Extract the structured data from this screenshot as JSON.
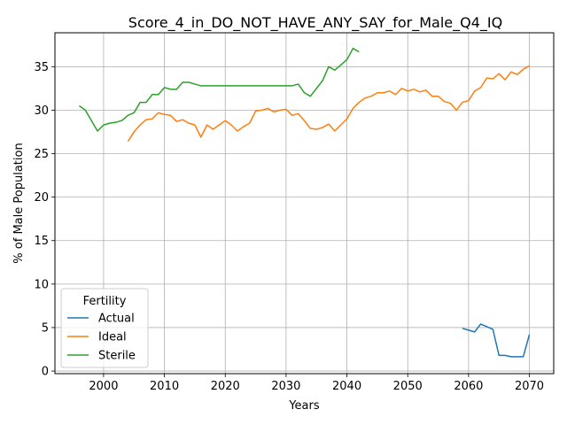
{
  "chart_data": {
    "type": "line",
    "title": "Score_4_in_DO_NOT_HAVE_ANY_SAY_for_Male_Q4_IQ",
    "xlabel": "Years",
    "ylabel": "% of Male Population",
    "xlim": [
      1992,
      2074
    ],
    "ylim": [
      -0.3,
      38.9
    ],
    "xticks": [
      2000,
      2010,
      2020,
      2030,
      2040,
      2050,
      2060,
      2070
    ],
    "yticks": [
      0,
      5,
      10,
      15,
      20,
      25,
      30,
      35
    ],
    "grid": true,
    "legend": {
      "title": "Fertility",
      "placement": "lower-left"
    },
    "series": [
      {
        "name": "Actual",
        "color": "#1f77b4",
        "x": [
          2059,
          2060,
          2061,
          2062,
          2063,
          2064,
          2065,
          2066,
          2067,
          2068,
          2069,
          2070
        ],
        "y": [
          4.9,
          4.7,
          4.5,
          5.4,
          5.1,
          4.8,
          1.8,
          1.8,
          1.65,
          1.65,
          1.65,
          4.2
        ]
      },
      {
        "name": "Ideal",
        "color": "#ff7f0e",
        "x": [
          2004,
          2005,
          2006,
          2007,
          2008,
          2009,
          2010,
          2011,
          2012,
          2013,
          2014,
          2015,
          2016,
          2017,
          2018,
          2019,
          2020,
          2021,
          2022,
          2023,
          2024,
          2025,
          2026,
          2027,
          2028,
          2029,
          2030,
          2031,
          2032,
          2033,
          2034,
          2035,
          2036,
          2037,
          2038,
          2039,
          2040,
          2041,
          2042,
          2043,
          2044,
          2045,
          2046,
          2047,
          2048,
          2049,
          2050,
          2051,
          2052,
          2053,
          2054,
          2055,
          2056,
          2057,
          2058,
          2059,
          2060,
          2061,
          2062,
          2063,
          2064,
          2065,
          2066,
          2067,
          2068,
          2069,
          2070
        ],
        "y": [
          26.4,
          27.5,
          28.3,
          28.9,
          29.0,
          29.7,
          29.5,
          29.4,
          28.7,
          28.9,
          28.5,
          28.3,
          26.9,
          28.3,
          27.8,
          28.3,
          28.8,
          28.3,
          27.6,
          28.1,
          28.5,
          29.9,
          30.0,
          30.2,
          29.8,
          30.0,
          30.1,
          29.4,
          29.6,
          28.8,
          27.9,
          27.8,
          28.0,
          28.4,
          27.6,
          28.3,
          29.0,
          30.2,
          30.9,
          31.4,
          31.6,
          32.0,
          32.0,
          32.2,
          31.8,
          32.5,
          32.2,
          32.4,
          32.1,
          32.3,
          31.6,
          31.6,
          31.0,
          30.8,
          30.0,
          30.9,
          31.1,
          32.2,
          32.6,
          33.7,
          33.6,
          34.2,
          33.5,
          34.4,
          34.1,
          34.7,
          35.1
        ]
      },
      {
        "name": "Sterile",
        "color": "#2ca02c",
        "x": [
          1996,
          1997,
          1998,
          1999,
          2000,
          2001,
          2002,
          2003,
          2004,
          2005,
          2006,
          2007,
          2008,
          2009,
          2010,
          2011,
          2012,
          2013,
          2014,
          2015,
          2016,
          2017,
          2018,
          2019,
          2020,
          2021,
          2022,
          2023,
          2024,
          2025,
          2026,
          2027,
          2028,
          2029,
          2030,
          2031,
          2032,
          2033,
          2034,
          2035,
          2036,
          2037,
          2038,
          2039,
          2040,
          2041,
          2042
        ],
        "y": [
          30.5,
          30.0,
          28.8,
          27.6,
          28.3,
          28.5,
          28.6,
          28.8,
          29.4,
          29.7,
          30.9,
          30.9,
          31.8,
          31.8,
          32.6,
          32.4,
          32.4,
          33.2,
          33.2,
          33.0,
          32.8,
          32.8,
          32.8,
          32.8,
          32.8,
          32.8,
          32.8,
          32.8,
          32.8,
          32.8,
          32.8,
          32.8,
          32.8,
          32.8,
          32.8,
          32.8,
          33.0,
          32.0,
          31.6,
          32.5,
          33.4,
          35.0,
          34.6,
          35.2,
          35.8,
          37.1,
          36.7
        ]
      }
    ]
  }
}
